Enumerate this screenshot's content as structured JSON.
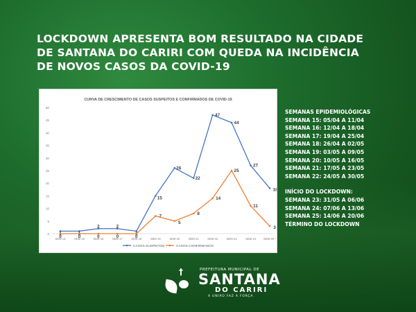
{
  "headline": [
    "LOCKDOWN APRESENTA BOM RESULTADO NA CIDADE",
    "DE SANTANA DO CARIRI COM QUEDA NA INCIDÊNCIA",
    "DE NOVOS CASOS DA COVID-19"
  ],
  "info_panel": {
    "weeks_title": "SEMANAS EPIDEMIOLÓGICAS",
    "weeks": [
      "SEMANA 15: 05/04 A 11/04",
      "SEMANA 16: 12/04 A 18/04",
      "SEMANA 17: 19/04 A 25/04",
      "SEMANA 18: 26/04 A 02/05",
      "SEMANA 19: 03/05 A 09/05",
      "SEMANA 20: 10/05 A 16/05",
      "SEMANA 21: 17/05 A 23/05",
      "SEMANA 22: 24/05 A 30/05"
    ],
    "lockdown_title": "INÍCIO DO LOCKDOWN:",
    "lockdown_weeks": [
      "SEMANA 23: 31/05 A 06/06",
      "SEMANA 24: 07/06 A 13/06",
      "SEMANA 25: 14/06 A 20/06"
    ],
    "lockdown_end": "TÉRMINO DO LOCKDOWN"
  },
  "footer": {
    "municipality": "PREFEITURA MUNICIPAL DE",
    "city_line1": "SANTANA",
    "city_line2": "DO CARIRI",
    "motto": "A UNIÃO FAZ A FORÇA"
  },
  "colors": {
    "suspected": "#4472c4",
    "confirmed": "#ed7d31",
    "background_green": "#1e6e2e"
  },
  "chart_data": {
    "type": "line",
    "title": "CURVA DE CRESCIMENTO DE CASOS SUSPEITOS E CONFIRMADOS DE COVID-19",
    "categories": [
      "SEM 14",
      "SEM 15",
      "SEM 16",
      "SEM 17",
      "SEM 18",
      "SEM 19",
      "SEM 20",
      "SEM 21",
      "SEM 22",
      "SEM 23",
      "SEM 24",
      "SEM 25 *"
    ],
    "series": [
      {
        "name": "CASOS SUSPEITOS",
        "color": "#4472c4",
        "values": [
          1,
          1,
          2,
          2,
          1,
          15,
          26,
          22,
          47,
          44,
          27,
          18
        ]
      },
      {
        "name": "CASOS CONFIRMADOS",
        "color": "#ed7d31",
        "values": [
          0,
          0,
          0,
          0,
          0,
          7,
          5,
          8,
          14,
          25,
          11,
          3
        ]
      }
    ],
    "yticks": [
      0,
      5,
      10,
      15,
      20,
      25,
      30,
      35,
      40,
      45,
      50
    ],
    "ylim": [
      0,
      50
    ],
    "legend_position": "bottom",
    "grid": false
  }
}
